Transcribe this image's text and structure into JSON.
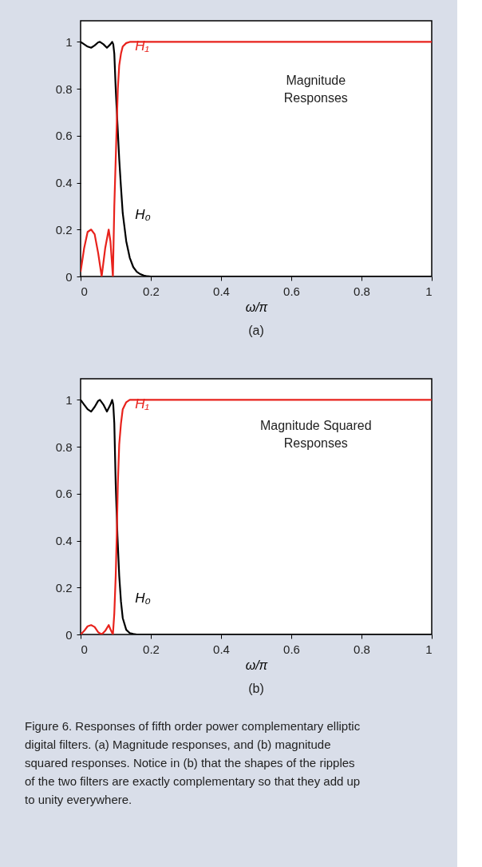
{
  "chart_data": [
    {
      "type": "line",
      "xlabel": "ω/π",
      "xlim": [
        0,
        1
      ],
      "xticks": [
        0,
        0.2,
        0.4,
        0.6,
        0.8,
        1
      ],
      "ylim": [
        0,
        1.09
      ],
      "yticks": [
        0,
        0.2,
        0.4,
        0.6,
        0.8,
        1
      ],
      "grid": false,
      "legend": false,
      "series": [
        {
          "name": "H₀",
          "color": "#000000",
          "x": [
            0,
            0.01,
            0.02,
            0.03,
            0.04,
            0.05,
            0.055,
            0.065,
            0.075,
            0.085,
            0.09,
            0.093,
            0.096,
            0.1,
            0.105,
            0.11,
            0.115,
            0.12,
            0.13,
            0.14,
            0.15,
            0.16,
            0.17,
            0.18,
            0.19,
            0.2,
            0.3,
            0.5,
            1
          ],
          "values": [
            1,
            0.99,
            0.98,
            0.975,
            0.985,
            0.998,
            1,
            0.99,
            0.975,
            0.99,
            1,
            0.99,
            0.95,
            0.8,
            0.65,
            0.5,
            0.38,
            0.27,
            0.15,
            0.08,
            0.04,
            0.02,
            0.01,
            0.004,
            0.001,
            0,
            0,
            0,
            0
          ]
        },
        {
          "name": "H₁",
          "color": "#e8221c",
          "x": [
            0,
            0.01,
            0.02,
            0.03,
            0.04,
            0.05,
            0.06,
            0.07,
            0.08,
            0.085,
            0.092,
            0.096,
            0.1,
            0.103,
            0.106,
            0.11,
            0.115,
            0.12,
            0.13,
            0.14,
            0.15,
            0.2,
            0.5,
            1
          ],
          "values": [
            0.02,
            0.12,
            0.19,
            0.2,
            0.18,
            0.1,
            0,
            0.12,
            0.2,
            0.15,
            0,
            0.3,
            0.5,
            0.65,
            0.8,
            0.9,
            0.95,
            0.98,
            0.995,
            1,
            1,
            1,
            1,
            1
          ]
        }
      ],
      "annotations": [
        "Magnitude Responses",
        "(a)"
      ]
    },
    {
      "type": "line",
      "xlabel": "ω/π",
      "xlim": [
        0,
        1
      ],
      "xticks": [
        0,
        0.2,
        0.4,
        0.6,
        0.8,
        1
      ],
      "ylim": [
        0,
        1.09
      ],
      "yticks": [
        0,
        0.2,
        0.4,
        0.6,
        0.8,
        1
      ],
      "grid": false,
      "legend": false,
      "series": [
        {
          "name": "H₀",
          "color": "#000000",
          "x": [
            0,
            0.01,
            0.02,
            0.03,
            0.04,
            0.05,
            0.055,
            0.065,
            0.075,
            0.085,
            0.09,
            0.093,
            0.096,
            0.1,
            0.105,
            0.11,
            0.115,
            0.12,
            0.13,
            0.14,
            0.15,
            0.16,
            0.2,
            0.5,
            1
          ],
          "values": [
            1,
            0.98,
            0.96,
            0.95,
            0.97,
            0.996,
            1,
            0.98,
            0.95,
            0.98,
            1,
            0.98,
            0.9,
            0.64,
            0.42,
            0.25,
            0.14,
            0.07,
            0.02,
            0.006,
            0.002,
            0,
            0,
            0,
            0
          ]
        },
        {
          "name": "H₁",
          "color": "#e8221c",
          "x": [
            0,
            0.01,
            0.02,
            0.03,
            0.04,
            0.05,
            0.06,
            0.07,
            0.08,
            0.085,
            0.092,
            0.096,
            0.1,
            0.103,
            0.106,
            0.11,
            0.115,
            0.12,
            0.13,
            0.14,
            0.15,
            0.2,
            0.5,
            1
          ],
          "values": [
            0,
            0.015,
            0.035,
            0.04,
            0.032,
            0.01,
            0,
            0.015,
            0.04,
            0.022,
            0,
            0.09,
            0.25,
            0.42,
            0.64,
            0.81,
            0.9,
            0.96,
            0.99,
            1,
            1,
            1,
            1,
            1
          ]
        }
      ],
      "annotations": [
        "Magnitude Squared Responses",
        "(b)",
        "Figure 6. Responses of fifth order power complementary elliptic digital filters. (a) Magnitude responses, and (b) magnitude squared responses. Notice in (b) that the shapes of the ripples of the two filters are exactly complementary so that they add up to unity everywhere."
      ]
    }
  ]
}
